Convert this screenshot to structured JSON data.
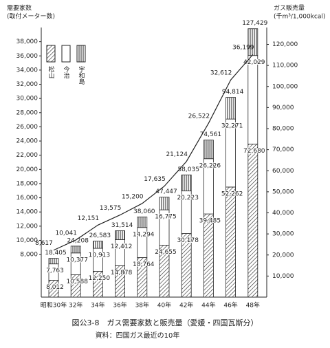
{
  "chart_data": {
    "type": "bar",
    "stacked": true,
    "title": "図公3-8　ガス需要家数と販売量（愛媛・四国瓦斯分）",
    "source": "資料：四国ガス最近の10年",
    "ylabel": [
      "需要家数",
      "(取付メーター数)"
    ],
    "y2label": [
      "ガス販売量",
      "(千m³/1,000kcal)"
    ],
    "categories": [
      "昭和30年",
      "32年",
      "34年",
      "36年",
      "38年",
      "40年",
      "42年",
      "44年",
      "46年",
      "48年"
    ],
    "series": [
      {
        "name": "松山",
        "pattern": "diagonal",
        "axis": "y2",
        "values": [
          8012,
          10588,
          12250,
          14878,
          18764,
          24655,
          30178,
          39485,
          52262,
          72680
        ],
        "value_labels": [
          "8,012",
          "10,588",
          "12,250",
          "14,878",
          "18,764",
          "24,655",
          "30,178",
          "39,485",
          "52,262",
          "72,680"
        ]
      },
      {
        "name": "今治",
        "pattern": "none",
        "axis": "y2",
        "values": [
          7763,
          10377,
          10913,
          12412,
          14294,
          16775,
          20223,
          26226,
          32271,
          42029
        ],
        "value_labels": [
          "7,763",
          "10,377",
          "10,913",
          "12,412",
          "14,294",
          "16,775",
          "20,223",
          "26,226",
          "32,271",
          "42,029"
        ]
      },
      {
        "name": "宇和島",
        "pattern": "vertical",
        "axis": "y2",
        "values": [
          2630,
          3243,
          3420,
          4224,
          5002,
          6017,
          7634,
          8850,
          10281,
          12720
        ]
      },
      {
        "type": "line",
        "axis": "y",
        "color": "#222",
        "values": [
          8617,
          10041,
          12151,
          13575,
          15200,
          17635,
          21124,
          26522,
          32612,
          36199
        ],
        "value_labels": [
          "8,617",
          "10,041",
          "12,151",
          "13,575",
          "15,200",
          "17,635",
          "21,124",
          "26,522",
          "32,612",
          "36,199"
        ]
      }
    ],
    "total_labels": [
      "18,405",
      "24,208",
      "26,583",
      "31,514",
      "38,060",
      "47,447",
      "58,035",
      "74,561",
      "94,814",
      "127,429"
    ],
    "ylim": [
      2000,
      40000
    ],
    "yticks": [
      {
        "value": 8000,
        "label": "8,000"
      },
      {
        "value": 10000,
        "label": "10,000"
      },
      {
        "value": 12000,
        "label": "12,000"
      },
      {
        "value": 14000,
        "label": "14,000"
      },
      {
        "value": 16000,
        "label": "16,000"
      },
      {
        "value": 18000,
        "label": "18,000"
      },
      {
        "value": 20000,
        "label": "20,000"
      },
      {
        "value": 22000,
        "label": "22,000"
      },
      {
        "value": 24000,
        "label": "24,000"
      },
      {
        "value": 26000,
        "label": "26,000"
      },
      {
        "value": 28000,
        "label": "28,000"
      },
      {
        "value": 30000,
        "label": "30,000"
      },
      {
        "value": 32000,
        "label": "32,000"
      },
      {
        "value": 34000,
        "label": "34,000"
      },
      {
        "value": 36000,
        "label": "36,000"
      },
      {
        "value": 38000,
        "label": "38,000"
      }
    ],
    "y2lim": [
      0,
      128000
    ],
    "y2ticks": [
      {
        "value": 10000,
        "label": "10,000"
      },
      {
        "value": 20000,
        "label": "20,000"
      },
      {
        "value": 30000,
        "label": "30,000"
      },
      {
        "value": 40000,
        "label": "40,000"
      },
      {
        "value": 50000,
        "label": "50,000"
      },
      {
        "value": 60000,
        "label": "60,000"
      },
      {
        "value": 70000,
        "label": "70,000"
      },
      {
        "value": 80000,
        "label": "80,000"
      },
      {
        "value": 90000,
        "label": "90,000"
      },
      {
        "value": 100000,
        "label": "100,000"
      },
      {
        "value": 110000,
        "label": "110,000"
      },
      {
        "value": 120000,
        "label": "120,000"
      }
    ]
  }
}
